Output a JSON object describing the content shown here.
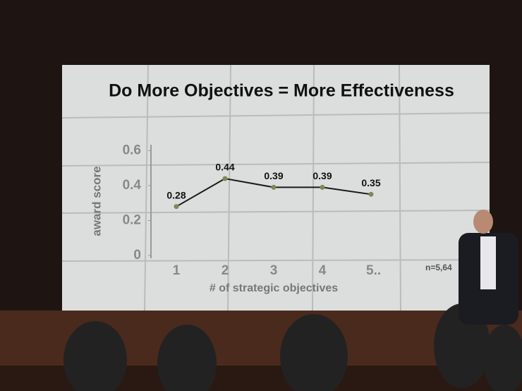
{
  "chart_data": {
    "type": "line",
    "title": "Do More Objectives = More Effectiveness",
    "x_label": "# of strategic objectives",
    "y_label": "award score",
    "annotation": "n=5,64",
    "categories": [
      "1",
      "2",
      "3",
      "4",
      "5.."
    ],
    "values": [
      0.28,
      0.44,
      0.39,
      0.39,
      0.35
    ],
    "color": "#1a1a1a",
    "ylim": [
      0,
      0.65
    ],
    "yticks": [
      0,
      0.2,
      0.4,
      0.6
    ]
  }
}
